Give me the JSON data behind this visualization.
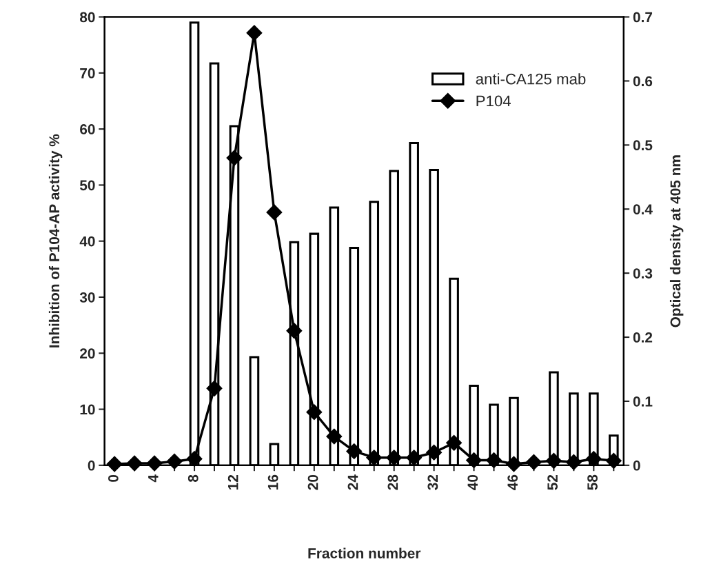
{
  "chart_data": {
    "type": "bar",
    "xlabel": "Fraction number",
    "ylabel": "Inhibition of P104-AP activity %",
    "y2label": "Optical density at 405 nm",
    "categories": [
      "0",
      null,
      "4",
      null,
      "8",
      null,
      "12",
      null,
      "16",
      null,
      "20",
      null,
      "24",
      null,
      "28",
      null,
      "32",
      null,
      "40",
      null,
      "46",
      null,
      "52",
      null,
      "58",
      null
    ],
    "series": [
      {
        "name": "anti-CA125 mab",
        "color": "#ffffff",
        "values": [
          null,
          null,
          null,
          null,
          79,
          71.7,
          60.5,
          19.3,
          3.8,
          39.8,
          41.3,
          46,
          38.8,
          47,
          52.5,
          57.5,
          52.7,
          33.3,
          14.2,
          10.8,
          12,
          null,
          16.6,
          12.8,
          12.8,
          5.3
        ]
      },
      {
        "name": "P104",
        "type": "line",
        "axis": "y2",
        "color": "#000000",
        "marker": "diamond",
        "values": [
          0.002,
          0.003,
          0.003,
          0.006,
          0.01,
          0.12,
          0.48,
          0.675,
          0.395,
          0.21,
          0.083,
          0.045,
          0.022,
          0.012,
          0.012,
          0.012,
          0.02,
          0.035,
          0.008,
          0.008,
          0.002,
          0.005,
          0.007,
          0.005,
          0.01,
          0.007
        ]
      }
    ],
    "ylim": [
      0,
      80
    ],
    "yticks": [
      0,
      10,
      20,
      30,
      40,
      50,
      60,
      70,
      80
    ],
    "y2lim": [
      0,
      0.7
    ],
    "y2ticks": [
      0,
      0.1,
      0.2,
      0.3,
      0.4,
      0.5,
      0.6,
      0.7
    ],
    "legend": "top right",
    "grid": false
  }
}
